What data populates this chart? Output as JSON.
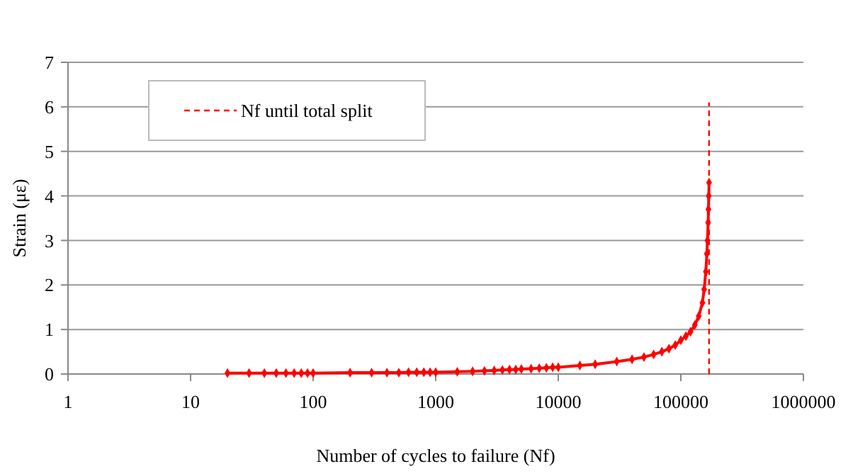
{
  "chart_data": {
    "type": "line",
    "xlabel": "Number of cycles to failure (Nf)",
    "ylabel": "Strain (με)",
    "log": "x",
    "xlim": [
      1,
      1000000
    ],
    "xticks": [
      1,
      10,
      100,
      1000,
      10000,
      100000,
      1000000
    ],
    "ylim": [
      0,
      7
    ],
    "yticks": [
      0,
      1,
      2,
      3,
      4,
      5,
      6,
      7
    ],
    "grid": "y",
    "legend": "top left",
    "marker": "diamond",
    "line_style": "solid",
    "series": [
      {
        "color": "#ff0000",
        "x": [
          20,
          30,
          40,
          50,
          60,
          70,
          80,
          90,
          100,
          200,
          300,
          400,
          500,
          600,
          700,
          800,
          900,
          1000,
          1500,
          2000,
          2500,
          3000,
          3500,
          4000,
          4500,
          5000,
          6000,
          7000,
          8000,
          9000,
          10000,
          15000,
          20000,
          30000,
          40000,
          50000,
          60000,
          70000,
          80000,
          90000,
          100000,
          110000,
          120000,
          130000,
          140000,
          150000,
          155000,
          160000,
          163000,
          165000,
          167000,
          168000,
          169000,
          170000
        ],
        "values": [
          0.02,
          0.02,
          0.02,
          0.02,
          0.02,
          0.02,
          0.02,
          0.02,
          0.02,
          0.03,
          0.03,
          0.03,
          0.03,
          0.04,
          0.04,
          0.04,
          0.04,
          0.04,
          0.05,
          0.06,
          0.07,
          0.08,
          0.09,
          0.1,
          0.1,
          0.11,
          0.12,
          0.13,
          0.14,
          0.15,
          0.15,
          0.19,
          0.22,
          0.28,
          0.33,
          0.38,
          0.44,
          0.5,
          0.57,
          0.65,
          0.76,
          0.85,
          0.95,
          1.1,
          1.3,
          1.6,
          1.9,
          2.3,
          2.7,
          3.0,
          3.4,
          3.7,
          4.0,
          4.3
        ]
      },
      {
        "name": "Nf until total split",
        "color": "#ff0000",
        "x": [
          170000,
          170000
        ],
        "values": [
          0,
          6.1
        ],
        "line_style": "dashed",
        "marker": "none"
      }
    ]
  }
}
